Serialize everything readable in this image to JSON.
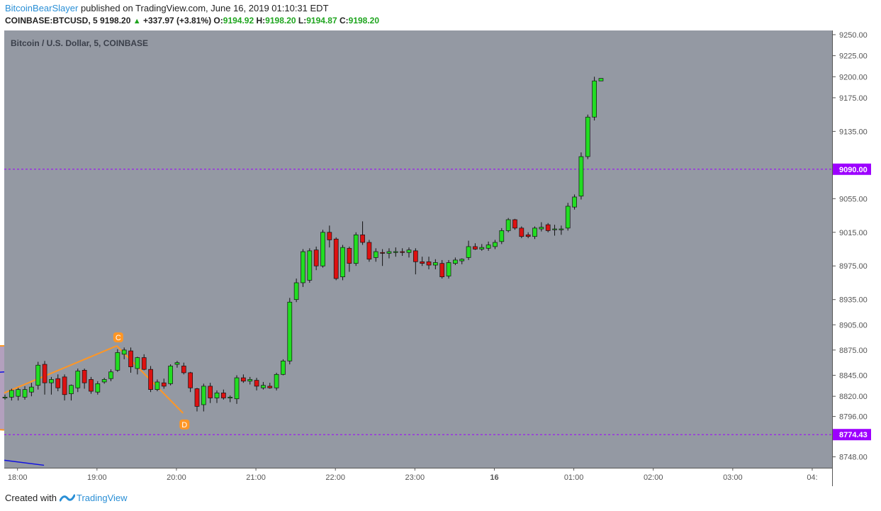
{
  "header": {
    "author": "BitcoinBearSlayer",
    "published_text": "published on TradingView.com, June 16, 2019 01:10:31 EDT",
    "symbol": "COINBASE:BTCUSD, 5",
    "last": "9198.20",
    "change": "+337.97 (+3.81%)",
    "open_label": "O:",
    "open": "9194.92",
    "high_label": "H:",
    "high": "9198.20",
    "low_label": "L:",
    "low": "9194.87",
    "close_label": "C:",
    "close": "9198.20"
  },
  "footer": {
    "created_with": "Created with",
    "brand": "TradingView"
  },
  "colors": {
    "background": "#9499a3",
    "bull": "#22dd22",
    "bear": "#dd1111",
    "pattern_line": "#ff9624",
    "pattern_fill": "#9a80a8",
    "trend_line": "#1010e0",
    "level_line": "#9d00ff",
    "level_label": "#9d00ff"
  },
  "chart_data": {
    "type": "candlestick",
    "title": "Bitcoin / U.S. Dollar, 5, COINBASE",
    "interval_minutes": 5,
    "x_range": [
      "17:50",
      "04:15"
    ],
    "ylim": [
      8735,
      9255
    ],
    "y_ticks": [
      9250,
      9225,
      9200,
      9175,
      9135,
      9090,
      9055,
      9015,
      8975,
      8935,
      8905,
      8875,
      8845,
      8820,
      8796,
      8774.43,
      8748
    ],
    "x_ticks": [
      {
        "label": "18:00",
        "time": "18:00"
      },
      {
        "label": "19:00",
        "time": "19:00"
      },
      {
        "label": "20:00",
        "time": "20:00"
      },
      {
        "label": "21:00",
        "time": "21:00"
      },
      {
        "label": "22:00",
        "time": "22:00"
      },
      {
        "label": "23:00",
        "time": "23:00"
      },
      {
        "label": "16",
        "time": "24:00"
      },
      {
        "label": "01:00",
        "time": "25:00"
      },
      {
        "label": "02:00",
        "time": "26:00"
      },
      {
        "label": "03:00",
        "time": "27:00"
      },
      {
        "label": "04:",
        "time": "28:00"
      }
    ],
    "horizontal_levels": [
      {
        "value": 9090.0,
        "label": "9090.00"
      },
      {
        "value": 8774.43,
        "label": "8774.43"
      }
    ],
    "pattern_points": [
      {
        "label": "C",
        "time": "19:15",
        "price": 8880
      },
      {
        "label": "D",
        "time": "20:05",
        "price": 8800
      }
    ],
    "pattern_lines": [
      {
        "from": [
          "17:50",
          8880
        ],
        "to": [
          "04:15",
          8872
        ]
      },
      {
        "from": [
          "17:50",
          8780
        ],
        "to": [
          "04:15",
          8866
        ]
      },
      {
        "from": [
          "17:50",
          8824
        ],
        "to": [
          "19:15",
          8880
        ]
      },
      {
        "from": [
          "19:15",
          8880
        ],
        "to": [
          "20:05",
          8800
        ]
      }
    ],
    "trend_lines": [
      {
        "from": [
          "17:50",
          8849
        ],
        "to": [
          "02:15",
          8742
        ]
      },
      {
        "from": [
          "17:50",
          8744
        ],
        "to": [
          "18:20",
          8738
        ]
      }
    ],
    "candles": [
      {
        "t": "17:50",
        "o": 8818,
        "h": 8822,
        "l": 8816,
        "c": 8819
      },
      {
        "t": "17:55",
        "o": 8819,
        "h": 8829,
        "l": 8815,
        "c": 8827
      },
      {
        "t": "18:00",
        "o": 8820,
        "h": 8830,
        "l": 8815,
        "c": 8828
      },
      {
        "t": "18:05",
        "o": 8819,
        "h": 8832,
        "l": 8816,
        "c": 8828
      },
      {
        "t": "18:10",
        "o": 8825,
        "h": 8836,
        "l": 8820,
        "c": 8831
      },
      {
        "t": "18:15",
        "o": 8833,
        "h": 8861,
        "l": 8828,
        "c": 8857
      },
      {
        "t": "18:20",
        "o": 8858,
        "h": 8862,
        "l": 8822,
        "c": 8836
      },
      {
        "t": "18:25",
        "o": 8836,
        "h": 8843,
        "l": 8822,
        "c": 8840
      },
      {
        "t": "18:30",
        "o": 8841,
        "h": 8846,
        "l": 8826,
        "c": 8830
      },
      {
        "t": "18:35",
        "o": 8843,
        "h": 8846,
        "l": 8815,
        "c": 8822
      },
      {
        "t": "18:40",
        "o": 8823,
        "h": 8834,
        "l": 8815,
        "c": 8833
      },
      {
        "t": "18:45",
        "o": 8830,
        "h": 8853,
        "l": 8825,
        "c": 8850
      },
      {
        "t": "18:50",
        "o": 8851,
        "h": 8853,
        "l": 8829,
        "c": 8836
      },
      {
        "t": "18:55",
        "o": 8840,
        "h": 8843,
        "l": 8823,
        "c": 8826
      },
      {
        "t": "19:00",
        "o": 8825,
        "h": 8838,
        "l": 8822,
        "c": 8835
      },
      {
        "t": "19:05",
        "o": 8837,
        "h": 8842,
        "l": 8835,
        "c": 8840
      },
      {
        "t": "19:10",
        "o": 8841,
        "h": 8852,
        "l": 8838,
        "c": 8849
      },
      {
        "t": "19:15",
        "o": 8851,
        "h": 8876,
        "l": 8849,
        "c": 8872
      },
      {
        "t": "19:20",
        "o": 8870,
        "h": 8878,
        "l": 8864,
        "c": 8875
      },
      {
        "t": "19:25",
        "o": 8874,
        "h": 8878,
        "l": 8848,
        "c": 8855
      },
      {
        "t": "19:30",
        "o": 8853,
        "h": 8867,
        "l": 8846,
        "c": 8866
      },
      {
        "t": "19:35",
        "o": 8866,
        "h": 8870,
        "l": 8851,
        "c": 8852
      },
      {
        "t": "19:40",
        "o": 8852,
        "h": 8856,
        "l": 8825,
        "c": 8828
      },
      {
        "t": "19:45",
        "o": 8828,
        "h": 8840,
        "l": 8826,
        "c": 8837
      },
      {
        "t": "19:50",
        "o": 8836,
        "h": 8841,
        "l": 8829,
        "c": 8832
      },
      {
        "t": "19:55",
        "o": 8835,
        "h": 8858,
        "l": 8833,
        "c": 8856
      },
      {
        "t": "20:00",
        "o": 8858,
        "h": 8862,
        "l": 8854,
        "c": 8860
      },
      {
        "t": "20:05",
        "o": 8856,
        "h": 8860,
        "l": 8846,
        "c": 8848
      },
      {
        "t": "20:10",
        "o": 8848,
        "h": 8849,
        "l": 8825,
        "c": 8830
      },
      {
        "t": "20:15",
        "o": 8829,
        "h": 8830,
        "l": 8802,
        "c": 8808
      },
      {
        "t": "20:20",
        "o": 8810,
        "h": 8835,
        "l": 8802,
        "c": 8832
      },
      {
        "t": "20:25",
        "o": 8832,
        "h": 8836,
        "l": 8812,
        "c": 8818
      },
      {
        "t": "20:30",
        "o": 8818,
        "h": 8827,
        "l": 8812,
        "c": 8824
      },
      {
        "t": "20:35",
        "o": 8824,
        "h": 8828,
        "l": 8816,
        "c": 8818
      },
      {
        "t": "20:40",
        "o": 8818,
        "h": 8821,
        "l": 8813,
        "c": 8819
      },
      {
        "t": "20:45",
        "o": 8817,
        "h": 8845,
        "l": 8811,
        "c": 8842
      },
      {
        "t": "20:50",
        "o": 8842,
        "h": 8846,
        "l": 8836,
        "c": 8838
      },
      {
        "t": "20:55",
        "o": 8838,
        "h": 8843,
        "l": 8834,
        "c": 8840
      },
      {
        "t": "21:00",
        "o": 8839,
        "h": 8842,
        "l": 8827,
        "c": 8832
      },
      {
        "t": "21:05",
        "o": 8830,
        "h": 8837,
        "l": 8828,
        "c": 8833
      },
      {
        "t": "21:10",
        "o": 8832,
        "h": 8836,
        "l": 8829,
        "c": 8830
      },
      {
        "t": "21:15",
        "o": 8830,
        "h": 8848,
        "l": 8827,
        "c": 8846
      },
      {
        "t": "21:20",
        "o": 8846,
        "h": 8864,
        "l": 8845,
        "c": 8862
      },
      {
        "t": "21:25",
        "o": 8862,
        "h": 8937,
        "l": 8858,
        "c": 8932
      },
      {
        "t": "21:30",
        "o": 8935,
        "h": 8960,
        "l": 8932,
        "c": 8955
      },
      {
        "t": "21:35",
        "o": 8955,
        "h": 8995,
        "l": 8950,
        "c": 8992
      },
      {
        "t": "21:40",
        "o": 8958,
        "h": 8996,
        "l": 8955,
        "c": 8993
      },
      {
        "t": "21:45",
        "o": 8994,
        "h": 8998,
        "l": 8970,
        "c": 8975
      },
      {
        "t": "21:50",
        "o": 8975,
        "h": 9018,
        "l": 8973,
        "c": 9015
      },
      {
        "t": "21:55",
        "o": 9015,
        "h": 9023,
        "l": 8997,
        "c": 9006
      },
      {
        "t": "22:00",
        "o": 9007,
        "h": 9009,
        "l": 8958,
        "c": 8960
      },
      {
        "t": "22:05",
        "o": 8962,
        "h": 9000,
        "l": 8958,
        "c": 8997
      },
      {
        "t": "22:10",
        "o": 8996,
        "h": 8998,
        "l": 8968,
        "c": 8978
      },
      {
        "t": "22:15",
        "o": 8978,
        "h": 9015,
        "l": 8975,
        "c": 9012
      },
      {
        "t": "22:20",
        "o": 9012,
        "h": 9028,
        "l": 9000,
        "c": 9003
      },
      {
        "t": "22:25",
        "o": 9003,
        "h": 9006,
        "l": 8980,
        "c": 8983
      },
      {
        "t": "22:30",
        "o": 8985,
        "h": 8996,
        "l": 8980,
        "c": 8992
      },
      {
        "t": "22:35",
        "o": 8991,
        "h": 8995,
        "l": 8975,
        "c": 8990
      },
      {
        "t": "22:40",
        "o": 8990,
        "h": 8996,
        "l": 8984,
        "c": 8992
      },
      {
        "t": "22:45",
        "o": 8991,
        "h": 8997,
        "l": 8986,
        "c": 8992
      },
      {
        "t": "22:50",
        "o": 8992,
        "h": 8996,
        "l": 8987,
        "c": 8991
      },
      {
        "t": "22:55",
        "o": 8991,
        "h": 8997,
        "l": 8985,
        "c": 8994
      },
      {
        "t": "23:00",
        "o": 8993,
        "h": 8996,
        "l": 8965,
        "c": 8980
      },
      {
        "t": "23:05",
        "o": 8980,
        "h": 8986,
        "l": 8975,
        "c": 8978
      },
      {
        "t": "23:10",
        "o": 8980,
        "h": 8986,
        "l": 8971,
        "c": 8976
      },
      {
        "t": "23:15",
        "o": 8976,
        "h": 8983,
        "l": 8971,
        "c": 8979
      },
      {
        "t": "23:20",
        "o": 8978,
        "h": 8982,
        "l": 8960,
        "c": 8962
      },
      {
        "t": "23:25",
        "o": 8963,
        "h": 8982,
        "l": 8960,
        "c": 8979
      },
      {
        "t": "23:30",
        "o": 8978,
        "h": 8985,
        "l": 8976,
        "c": 8982
      },
      {
        "t": "23:35",
        "o": 8981,
        "h": 8984,
        "l": 8977,
        "c": 8983
      },
      {
        "t": "23:40",
        "o": 8985,
        "h": 9005,
        "l": 8982,
        "c": 8998
      },
      {
        "t": "23:45",
        "o": 8998,
        "h": 9002,
        "l": 8994,
        "c": 8995
      },
      {
        "t": "23:50",
        "o": 8995,
        "h": 9001,
        "l": 8993,
        "c": 8997
      },
      {
        "t": "23:55",
        "o": 8996,
        "h": 9004,
        "l": 8993,
        "c": 9000
      },
      {
        "t": "24:00",
        "o": 8998,
        "h": 9006,
        "l": 8995,
        "c": 9003
      },
      {
        "t": "24:05",
        "o": 9004,
        "h": 9020,
        "l": 9001,
        "c": 9017
      },
      {
        "t": "24:10",
        "o": 9017,
        "h": 9032,
        "l": 9015,
        "c": 9030
      },
      {
        "t": "24:15",
        "o": 9030,
        "h": 9031,
        "l": 9018,
        "c": 9020
      },
      {
        "t": "24:20",
        "o": 9020,
        "h": 9022,
        "l": 9008,
        "c": 9010
      },
      {
        "t": "24:25",
        "o": 9012,
        "h": 9015,
        "l": 9008,
        "c": 9010
      },
      {
        "t": "24:30",
        "o": 9010,
        "h": 9022,
        "l": 9007,
        "c": 9020
      },
      {
        "t": "24:35",
        "o": 9019,
        "h": 9027,
        "l": 9016,
        "c": 9021
      },
      {
        "t": "24:40",
        "o": 9024,
        "h": 9026,
        "l": 9015,
        "c": 9017
      },
      {
        "t": "24:45",
        "o": 9018,
        "h": 9024,
        "l": 9011,
        "c": 9019
      },
      {
        "t": "24:50",
        "o": 9018,
        "h": 9023,
        "l": 9012,
        "c": 9019
      },
      {
        "t": "24:55",
        "o": 9020,
        "h": 9050,
        "l": 9017,
        "c": 9046
      },
      {
        "t": "25:00",
        "o": 9045,
        "h": 9060,
        "l": 9042,
        "c": 9057
      },
      {
        "t": "25:05",
        "o": 9058,
        "h": 9110,
        "l": 9054,
        "c": 9105
      },
      {
        "t": "25:10",
        "o": 9105,
        "h": 9155,
        "l": 9102,
        "c": 9152
      },
      {
        "t": "25:15",
        "o": 9152,
        "h": 9200,
        "l": 9148,
        "c": 9195
      },
      {
        "t": "25:20",
        "o": 9195,
        "h": 9198,
        "l": 9195,
        "c": 9198
      }
    ]
  }
}
